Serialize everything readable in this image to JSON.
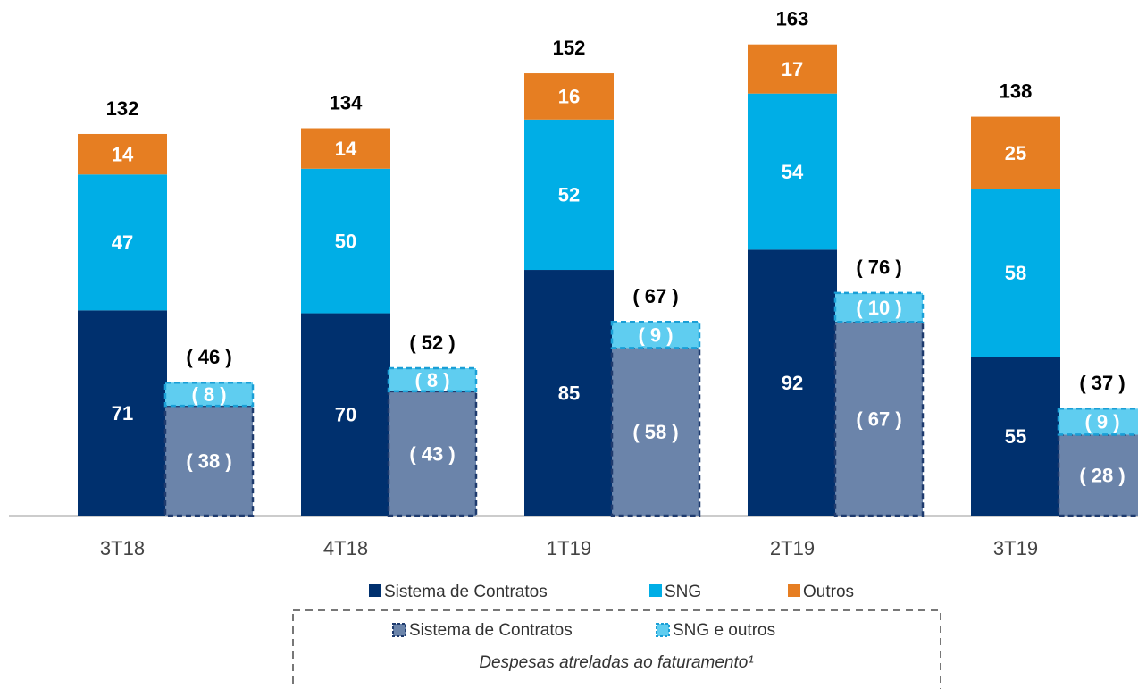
{
  "chart_data": {
    "type": "bar",
    "stacked": true,
    "categories": [
      "3T18",
      "4T18",
      "1T19",
      "2T19",
      "3T19"
    ],
    "ylim": [
      0,
      180
    ],
    "series": [
      {
        "name": "Sistema de Contratos",
        "color": "#00306e",
        "values": [
          71,
          70,
          85,
          92,
          55
        ]
      },
      {
        "name": "SNG",
        "color": "#00aee6",
        "values": [
          47,
          50,
          52,
          54,
          58
        ]
      },
      {
        "name": "Outros",
        "color": "#e67e22",
        "values": [
          14,
          14,
          16,
          17,
          25
        ]
      }
    ],
    "totals": [
      132,
      134,
      152,
      163,
      138
    ],
    "expense_series": [
      {
        "name": "Sistema de Contratos",
        "color": "#6b84aa",
        "border_color": "#1f3b6e",
        "values": [
          38,
          43,
          58,
          67,
          28
        ],
        "value_labels": [
          "( 38 )",
          "( 43 )",
          "( 58 )",
          "( 67 )",
          "( 28 )"
        ]
      },
      {
        "name": "SNG e outros",
        "color": "#5fcdf0",
        "border_color": "#1a9fd6",
        "values": [
          8,
          8,
          9,
          10,
          9
        ],
        "value_labels": [
          "( 8 )",
          "( 8 )",
          "( 9 )",
          "( 10 )",
          "( 9 )"
        ]
      }
    ],
    "expense_totals": [
      46,
      52,
      67,
      76,
      37
    ],
    "expense_total_labels": [
      "( 46 )",
      "( 52 )",
      "( 67 )",
      "( 76 )",
      "( 37 )"
    ],
    "legend_note": "Despesas atreladas ao faturamento¹"
  }
}
